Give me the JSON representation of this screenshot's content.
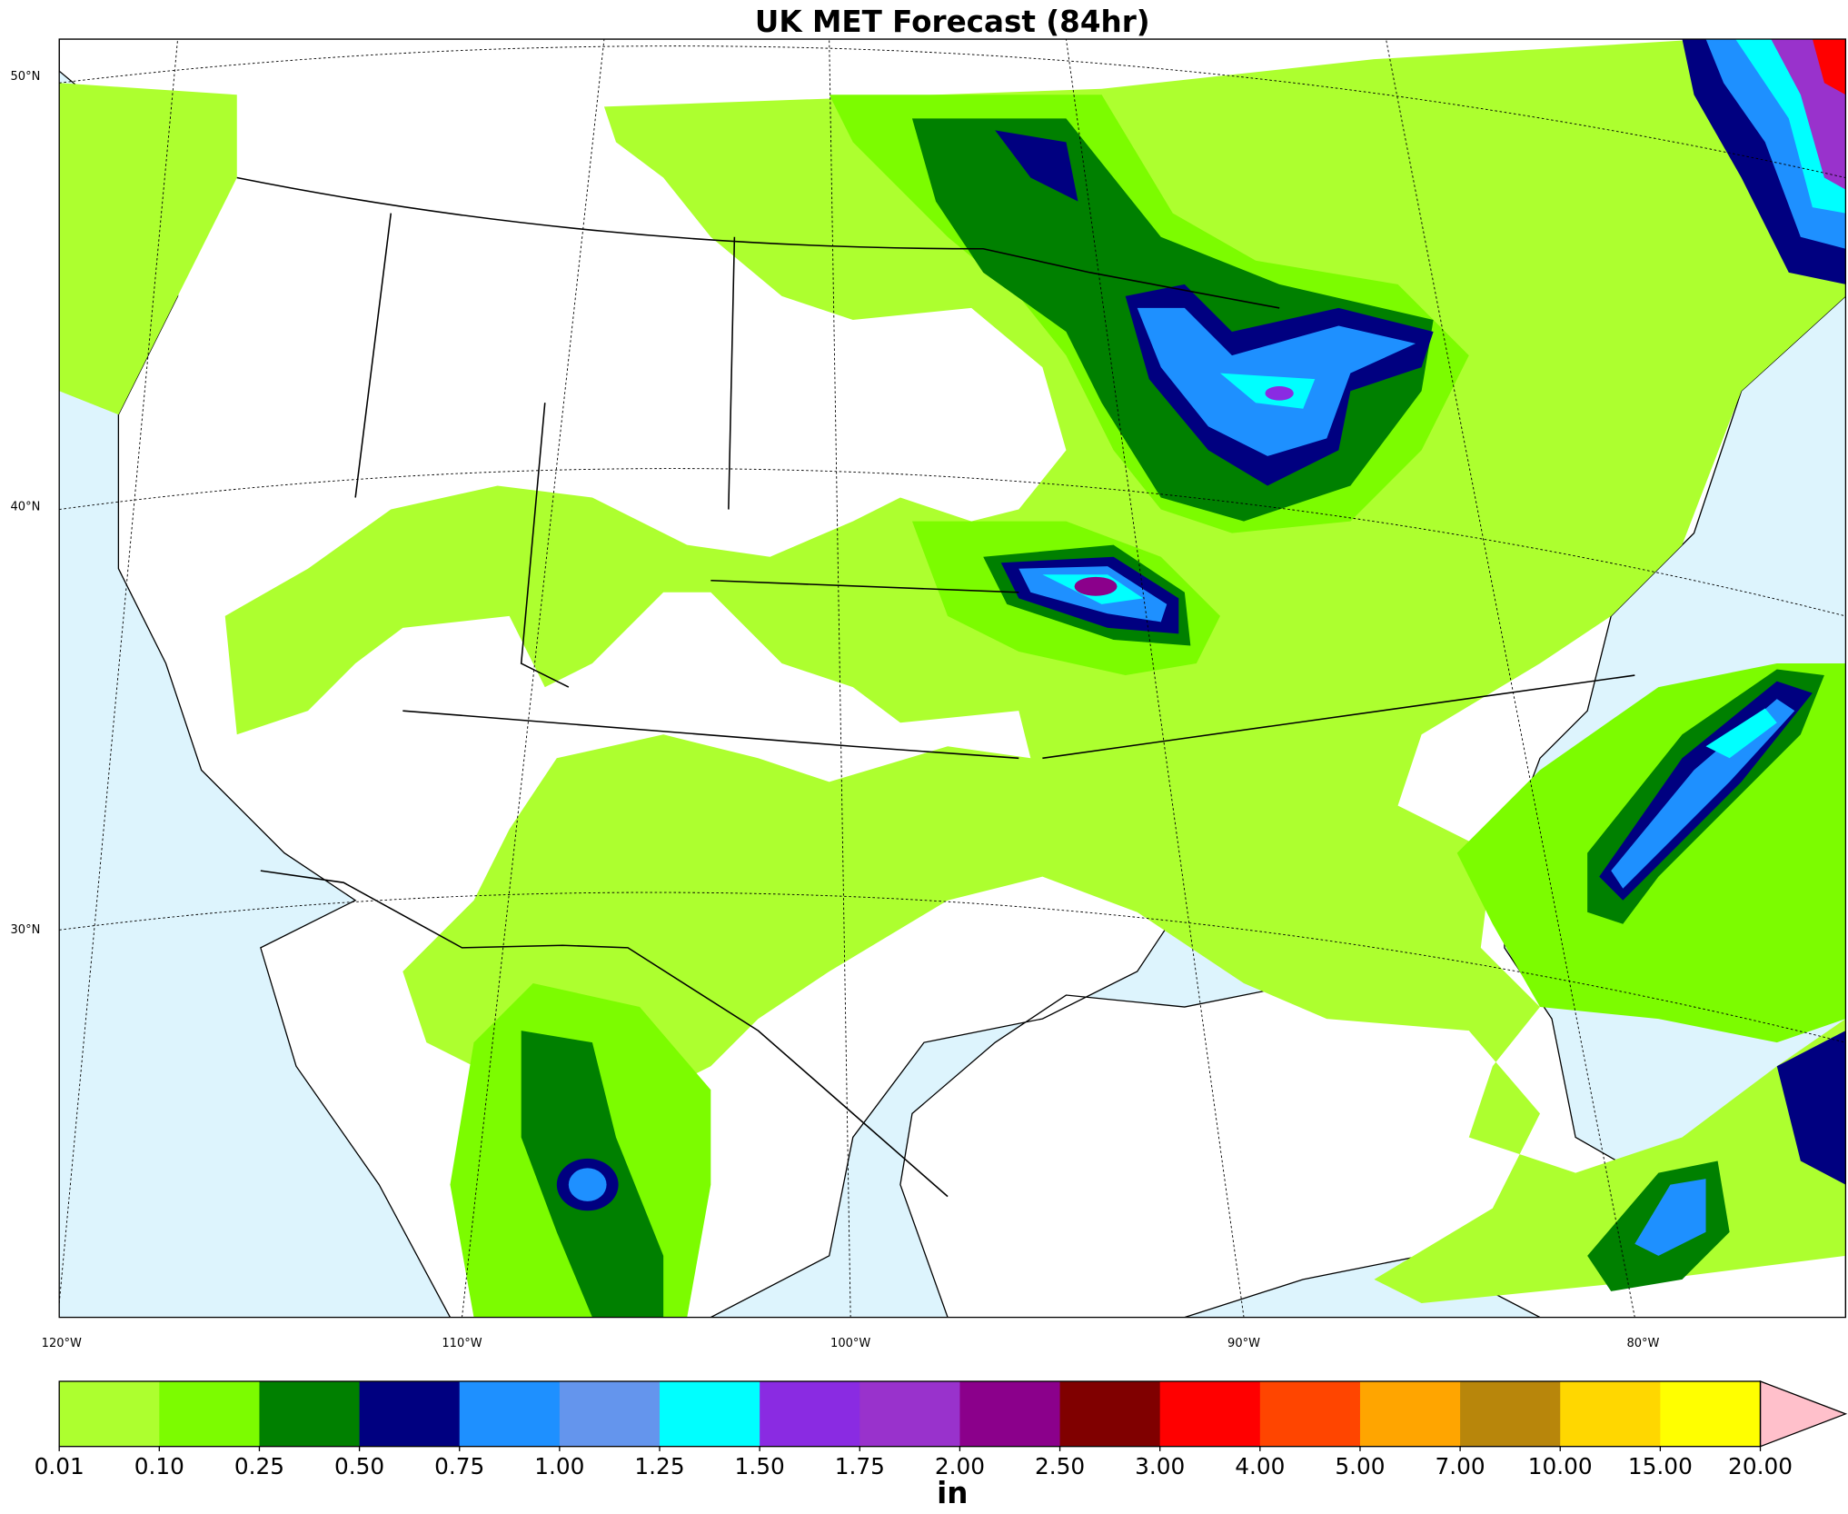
{
  "title": "UK MET Forecast (84hr)",
  "lat_labels": [
    "50°N",
    "40°N",
    "30°N"
  ],
  "lon_labels": [
    "120°W",
    "110°W",
    "100°W",
    "90°W",
    "80°W"
  ],
  "colorbar": {
    "unit": "in",
    "levels": [
      {
        "value": 0.01,
        "label": "0.01"
      },
      {
        "value": 0.1,
        "label": "0.10"
      },
      {
        "value": 0.25,
        "label": "0.25"
      },
      {
        "value": 0.5,
        "label": "0.50"
      },
      {
        "value": 0.75,
        "label": "0.75"
      },
      {
        "value": 1,
        "label": "1.00"
      },
      {
        "value": 1.25,
        "label": "1.25"
      },
      {
        "value": 1.5,
        "label": "1.50"
      },
      {
        "value": 1.75,
        "label": "1.75"
      },
      {
        "value": 2,
        "label": "2.00"
      },
      {
        "value": 2.5,
        "label": "2.50"
      },
      {
        "value": 3,
        "label": "3.00"
      },
      {
        "value": 4,
        "label": "4.00"
      },
      {
        "value": 5,
        "label": "5.00"
      },
      {
        "value": 7,
        "label": "7.00"
      },
      {
        "value": 10,
        "label": "10.00"
      },
      {
        "value": 15,
        "label": "15.00"
      },
      {
        "value": 20,
        "label": "20.00"
      }
    ],
    "colors": [
      "#adff2f",
      "#7cfc00",
      "#008000",
      "#000080",
      "#1e90ff",
      "#6495ed",
      "#00ffff",
      "#8a2be2",
      "#9932cc",
      "#8b008b",
      "#800000",
      "#ff0000",
      "#ff4500",
      "#ffa500",
      "#b8860b",
      "#ffd700",
      "#ffff00"
    ],
    "extend_color": "#ffc0cb"
  }
}
